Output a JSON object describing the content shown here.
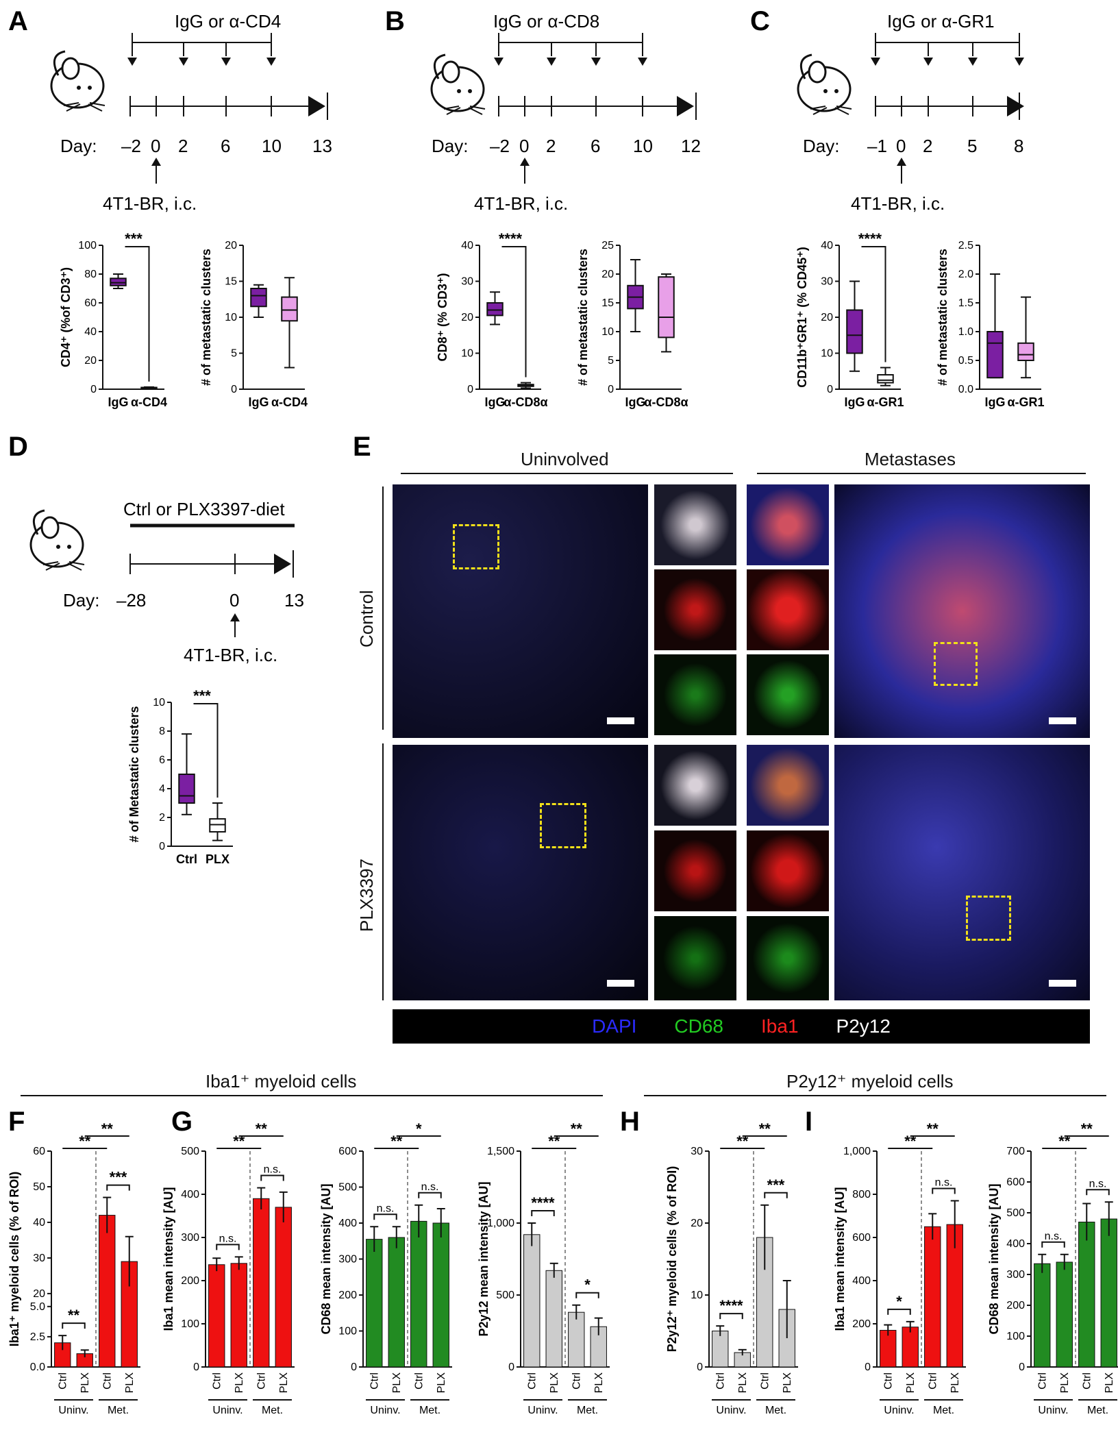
{
  "panels": {
    "A": {
      "letter": "A",
      "treatment": "IgG or α-CD4",
      "day_label": "Day:",
      "days": [
        "–2",
        "0",
        "2",
        "6",
        "10",
        "13"
      ],
      "injection": "4T1-BR, i.c."
    },
    "B": {
      "letter": "B",
      "treatment": "IgG or α-CD8",
      "day_label": "Day:",
      "days": [
        "–2",
        "0",
        "2",
        "6",
        "10",
        "12"
      ],
      "injection": "4T1-BR, i.c."
    },
    "C": {
      "letter": "C",
      "treatment": "IgG or α-GR1",
      "day_label": "Day:",
      "days": [
        "–1",
        "0",
        "2",
        "5",
        "8"
      ],
      "injection": "4T1-BR, i.c."
    },
    "D": {
      "letter": "D",
      "treatment": "Ctrl or PLX3397-diet",
      "day_label": "Day:",
      "days": [
        "–28",
        "0",
        "13"
      ],
      "injection": "4T1-BR, i.c."
    },
    "E": {
      "letter": "E",
      "col_uninvolved": "Uninvolved",
      "col_metastases": "Metastases",
      "row_control": "Control",
      "row_plx": "PLX3397",
      "legend": [
        {
          "label": "DAPI",
          "color": "#2b2bff"
        },
        {
          "label": "CD68",
          "color": "#22cc22"
        },
        {
          "label": "Iba1",
          "color": "#ff2222"
        },
        {
          "label": "P2y12",
          "color": "#ffffff"
        }
      ]
    },
    "F": {
      "letter": "F"
    },
    "G": {
      "letter": "G"
    },
    "H": {
      "letter": "H"
    },
    "I": {
      "letter": "I"
    }
  },
  "section_titles": {
    "iba1": "Iba1⁺ myeloid cells",
    "p2y12": "P2y12⁺ myeloid cells"
  },
  "group_labels": {
    "uninv": "Uninv.",
    "met": "Met."
  },
  "chart_data": [
    {
      "id": "A1",
      "type": "box",
      "ylabel": "CD4⁺ (%of CD3⁺)",
      "categories": [
        "IgG",
        "α-CD4"
      ],
      "ylim": [
        0,
        100
      ],
      "yticks": [
        "0",
        "20",
        "40",
        "60",
        "80",
        "100"
      ],
      "boxes": [
        {
          "min": 70,
          "q1": 72,
          "median": 74,
          "q3": 77,
          "max": 80,
          "color": "#7b1fa2"
        },
        {
          "min": 0.5,
          "q1": 0.8,
          "median": 1,
          "q3": 1.2,
          "max": 1.5,
          "color": "#ffffff"
        }
      ],
      "significance": "***"
    },
    {
      "id": "A2",
      "type": "box",
      "ylabel": "# of metastatic clusters",
      "categories": [
        "IgG",
        "α-CD4"
      ],
      "ylim": [
        0,
        20
      ],
      "yticks": [
        "0",
        "5",
        "10",
        "15",
        "20"
      ],
      "boxes": [
        {
          "min": 10,
          "q1": 11.5,
          "median": 13,
          "q3": 14,
          "max": 14.5,
          "color": "#7b1fa2"
        },
        {
          "min": 3,
          "q1": 9.5,
          "median": 11,
          "q3": 12.8,
          "max": 15.5,
          "color": "#e8a0e8"
        }
      ]
    },
    {
      "id": "B1",
      "type": "box",
      "ylabel": "CD8⁺ (% CD3⁺)",
      "categories": [
        "IgG",
        "α-CD8α"
      ],
      "ylim": [
        0,
        40
      ],
      "yticks": [
        "0",
        "10",
        "20",
        "30",
        "40"
      ],
      "boxes": [
        {
          "min": 18,
          "q1": 20.5,
          "median": 22,
          "q3": 24,
          "max": 27,
          "color": "#7b1fa2"
        },
        {
          "min": 0.3,
          "q1": 0.8,
          "median": 1,
          "q3": 1.3,
          "max": 1.8,
          "color": "#ffffff"
        }
      ],
      "significance": "****"
    },
    {
      "id": "B2",
      "type": "box",
      "ylabel": "# of metastatic clusters",
      "categories": [
        "IgG",
        "α-CD8α"
      ],
      "ylim": [
        0,
        25
      ],
      "yticks": [
        "0",
        "5",
        "10",
        "15",
        "20",
        "25"
      ],
      "boxes": [
        {
          "min": 10,
          "q1": 14,
          "median": 16,
          "q3": 18,
          "max": 22.5,
          "color": "#7b1fa2"
        },
        {
          "min": 6.5,
          "q1": 9,
          "median": 12.5,
          "q3": 19.5,
          "max": 20,
          "color": "#e8a0e8"
        }
      ]
    },
    {
      "id": "C1",
      "type": "box",
      "ylabel": "CD11b⁺GR1⁺ (% CD45⁺)",
      "categories": [
        "IgG",
        "α-GR1"
      ],
      "ylim": [
        0,
        40
      ],
      "yticks": [
        "0",
        "10",
        "20",
        "30",
        "40"
      ],
      "boxes": [
        {
          "min": 5,
          "q1": 10,
          "median": 15,
          "q3": 22,
          "max": 30,
          "color": "#7b1fa2"
        },
        {
          "min": 1,
          "q1": 1.8,
          "median": 2.5,
          "q3": 4,
          "max": 6,
          "color": "#ffffff"
        }
      ],
      "significance": "****"
    },
    {
      "id": "C2",
      "type": "box",
      "ylabel": "# of metastatic clusters",
      "categories": [
        "IgG",
        "α-GR1"
      ],
      "ylim": [
        0,
        2.5
      ],
      "yticks": [
        "0.0",
        "0.5",
        "1.0",
        "1.5",
        "2.0",
        "2.5"
      ],
      "boxes": [
        {
          "min": 0.2,
          "q1": 0.2,
          "median": 0.8,
          "q3": 1.0,
          "max": 2.0,
          "color": "#7b1fa2"
        },
        {
          "min": 0.2,
          "q1": 0.5,
          "median": 0.6,
          "q3": 0.8,
          "max": 1.6,
          "color": "#e8a0e8"
        }
      ]
    },
    {
      "id": "D1",
      "type": "box",
      "ylabel": "# of Metastatic clusters",
      "categories": [
        "Ctrl",
        "PLX"
      ],
      "ylim": [
        0,
        10
      ],
      "yticks": [
        "0",
        "2",
        "4",
        "6",
        "8",
        "10"
      ],
      "boxes": [
        {
          "min": 2.2,
          "q1": 3,
          "median": 3.5,
          "q3": 5,
          "max": 7.8,
          "color": "#7b1fa2"
        },
        {
          "min": 0.4,
          "q1": 1,
          "median": 1.5,
          "q3": 1.9,
          "max": 3,
          "color": "#ffffff"
        }
      ],
      "significance": "***"
    },
    {
      "id": "F",
      "type": "bar",
      "ylabel": "Iba1⁺ myeloid cells (% of ROI)",
      "categories": [
        "Ctrl",
        "PLX",
        "Ctrl",
        "PLX"
      ],
      "groups": [
        "Uninv.",
        "Met."
      ],
      "values": [
        2,
        1.1,
        42,
        29
      ],
      "errors": [
        0.6,
        0.3,
        5,
        7
      ],
      "colors": [
        "#ee1111",
        "#ee1111",
        "#ee1111",
        "#ee1111"
      ],
      "yticks": [
        "0.0",
        "2.5",
        "5.0",
        "20",
        "30",
        "40",
        "50",
        "60"
      ],
      "significance": [
        "**",
        "**",
        "**",
        "***"
      ]
    },
    {
      "id": "G1",
      "type": "bar",
      "ylabel": "Iba1 mean intensity [AU]",
      "categories": [
        "Ctrl",
        "PLX",
        "Ctrl",
        "PLX"
      ],
      "groups": [
        "Uninv.",
        "Met."
      ],
      "values": [
        237,
        240,
        390,
        370
      ],
      "errors": [
        15,
        15,
        25,
        35
      ],
      "colors": [
        "#ee1111",
        "#ee1111",
        "#ee1111",
        "#ee1111"
      ],
      "ylim": [
        0,
        500
      ],
      "yticks": [
        "0",
        "100",
        "200",
        "300",
        "400",
        "500"
      ],
      "significance": [
        "**",
        "**",
        "n.s.",
        "n.s."
      ]
    },
    {
      "id": "G2",
      "type": "bar",
      "ylabel": "CD68 mean intensity [AU]",
      "categories": [
        "Ctrl",
        "PLX",
        "Ctrl",
        "PLX"
      ],
      "groups": [
        "Uninv.",
        "Met."
      ],
      "values": [
        355,
        360,
        405,
        400
      ],
      "errors": [
        35,
        30,
        45,
        40
      ],
      "colors": [
        "#228b22",
        "#228b22",
        "#228b22",
        "#228b22"
      ],
      "ylim": [
        0,
        600
      ],
      "yticks": [
        "0",
        "100",
        "200",
        "300",
        "400",
        "500",
        "600"
      ],
      "significance": [
        "**",
        "*",
        "n.s.",
        "n.s."
      ]
    },
    {
      "id": "G3",
      "type": "bar",
      "ylabel": "P2y12 mean intensity [AU]",
      "categories": [
        "Ctrl",
        "PLX",
        "Ctrl",
        "PLX"
      ],
      "groups": [
        "Uninv.",
        "Met."
      ],
      "values": [
        920,
        670,
        380,
        280
      ],
      "errors": [
        80,
        50,
        50,
        60
      ],
      "colors": [
        "#cccccc",
        "#cccccc",
        "#cccccc",
        "#cccccc"
      ],
      "ylim": [
        0,
        1500
      ],
      "yticks": [
        "0",
        "500",
        "1,000",
        "1,500"
      ],
      "significance": [
        "**",
        "**",
        "****",
        "*"
      ]
    },
    {
      "id": "H",
      "type": "bar",
      "ylabel": "P2y12⁺ myeloid cells (% of ROI)",
      "categories": [
        "Ctrl",
        "PLX",
        "Ctrl",
        "PLX"
      ],
      "groups": [
        "Uninv.",
        "Met."
      ],
      "values": [
        5,
        2,
        18,
        8
      ],
      "errors": [
        0.7,
        0.4,
        4.5,
        4
      ],
      "colors": [
        "#cccccc",
        "#cccccc",
        "#cccccc",
        "#cccccc"
      ],
      "ylim": [
        0,
        30
      ],
      "yticks": [
        "0",
        "10",
        "20",
        "30"
      ],
      "significance": [
        "**",
        "**",
        "****",
        "***"
      ]
    },
    {
      "id": "I1",
      "type": "bar",
      "ylabel": "Iba1 mean intensity [AU]",
      "categories": [
        "Ctrl",
        "PLX",
        "Ctrl",
        "PLX"
      ],
      "groups": [
        "Uninv.",
        "Met."
      ],
      "values": [
        170,
        185,
        650,
        660
      ],
      "errors": [
        25,
        25,
        60,
        110
      ],
      "colors": [
        "#ee1111",
        "#ee1111",
        "#ee1111",
        "#ee1111"
      ],
      "ylim": [
        0,
        1000
      ],
      "yticks": [
        "0",
        "200",
        "400",
        "600",
        "800",
        "1,000"
      ],
      "significance": [
        "**",
        "**",
        "*",
        "n.s."
      ]
    },
    {
      "id": "I2",
      "type": "bar",
      "ylabel": "CD68 mean intensity [AU]",
      "categories": [
        "Ctrl",
        "PLX",
        "Ctrl",
        "PLX"
      ],
      "groups": [
        "Uninv.",
        "Met."
      ],
      "values": [
        335,
        340,
        470,
        480
      ],
      "errors": [
        30,
        25,
        60,
        55
      ],
      "colors": [
        "#228b22",
        "#228b22",
        "#228b22",
        "#228b22"
      ],
      "ylim": [
        0,
        700
      ],
      "yticks": [
        "0",
        "100",
        "200",
        "300",
        "400",
        "500",
        "600",
        "700"
      ],
      "significance": [
        "**",
        "**",
        "n.s.",
        "n.s."
      ]
    }
  ]
}
